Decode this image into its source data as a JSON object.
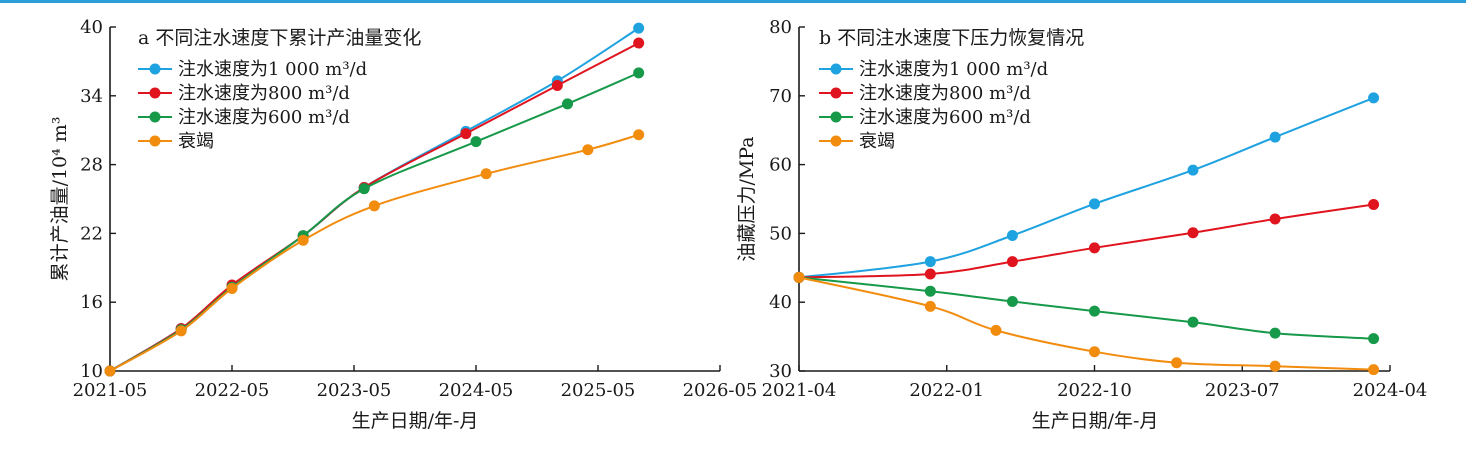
{
  "header_rule_color": "#2a9fd8",
  "chart_data": [
    {
      "type": "line",
      "title": "a 不同注水速度下累计产油量变化",
      "xlabel": "生产日期/年-月",
      "ylabel": "累计产油量/10⁴ m³",
      "x_ticks": [
        "2021-05",
        "2022-05",
        "2023-05",
        "2024-05",
        "2025-05",
        "2026-05"
      ],
      "xlim": [
        "2021-05",
        "2026-05"
      ],
      "ylim": [
        10,
        40
      ],
      "y_ticks": [
        10,
        16,
        22,
        28,
        34,
        40
      ],
      "legend_position": "top-left",
      "grid": false,
      "series": [
        {
          "name": "注水速度为1 000 m³/d",
          "color": "#1fa2e0",
          "points": [
            [
              "2021-05",
              10.0
            ],
            [
              "2021-12",
              13.7
            ],
            [
              "2022-05",
              17.4
            ],
            [
              "2022-12",
              21.8
            ],
            [
              "2023-06",
              26.0
            ],
            [
              "2024-04",
              30.9
            ],
            [
              "2025-01",
              35.3
            ],
            [
              "2025-09",
              39.9
            ]
          ]
        },
        {
          "name": "注水速度为800 m³/d",
          "color": "#e0141e",
          "points": [
            [
              "2021-05",
              10.0
            ],
            [
              "2021-12",
              13.7
            ],
            [
              "2022-05",
              17.5
            ],
            [
              "2022-12",
              21.8
            ],
            [
              "2023-06",
              26.0
            ],
            [
              "2024-04",
              30.7
            ],
            [
              "2025-01",
              34.9
            ],
            [
              "2025-09",
              38.6
            ]
          ]
        },
        {
          "name": "注水速度为600 m³/d",
          "color": "#17994a",
          "points": [
            [
              "2021-05",
              10.0
            ],
            [
              "2021-12",
              13.6
            ],
            [
              "2022-05",
              17.3
            ],
            [
              "2022-12",
              21.8
            ],
            [
              "2023-06",
              25.9
            ],
            [
              "2024-05",
              30.0
            ],
            [
              "2025-02",
              33.3
            ],
            [
              "2025-09",
              36.0
            ]
          ]
        },
        {
          "name": "衰竭",
          "color": "#f28c0f",
          "points": [
            [
              "2021-05",
              10.0
            ],
            [
              "2021-12",
              13.5
            ],
            [
              "2022-05",
              17.2
            ],
            [
              "2022-12",
              21.4
            ],
            [
              "2023-07",
              24.4
            ],
            [
              "2024-06",
              27.2
            ],
            [
              "2025-04",
              29.3
            ],
            [
              "2025-09",
              30.6
            ]
          ]
        }
      ]
    },
    {
      "type": "line",
      "title": "b 不同注水速度下压力恢复情况",
      "xlabel": "生产日期/年-月",
      "ylabel": "油藏压力/MPa",
      "x_ticks": [
        "2021-04",
        "2022-01",
        "2022-10",
        "2023-07",
        "2024-04"
      ],
      "xlim": [
        "2021-04",
        "2024-04"
      ],
      "ylim": [
        30,
        80
      ],
      "y_ticks": [
        30,
        40,
        50,
        60,
        70,
        80
      ],
      "legend_position": "top-left",
      "grid": false,
      "series": [
        {
          "name": "注水速度为1 000 m³/d",
          "color": "#1fa2e0",
          "points": [
            [
              "2021-04",
              43.6
            ],
            [
              "2021-12",
              45.9
            ],
            [
              "2022-05",
              49.7
            ],
            [
              "2022-10",
              54.3
            ],
            [
              "2023-04",
              59.2
            ],
            [
              "2023-09",
              64.0
            ],
            [
              "2024-03",
              69.7
            ]
          ]
        },
        {
          "name": "注水速度为800 m³/d",
          "color": "#e0141e",
          "points": [
            [
              "2021-04",
              43.6
            ],
            [
              "2021-12",
              44.1
            ],
            [
              "2022-05",
              45.9
            ],
            [
              "2022-10",
              47.9
            ],
            [
              "2023-04",
              50.1
            ],
            [
              "2023-09",
              52.1
            ],
            [
              "2024-03",
              54.2
            ]
          ]
        },
        {
          "name": "注水速度为600 m³/d",
          "color": "#17994a",
          "points": [
            [
              "2021-04",
              43.6
            ],
            [
              "2021-12",
              41.6
            ],
            [
              "2022-05",
              40.1
            ],
            [
              "2022-10",
              38.7
            ],
            [
              "2023-04",
              37.1
            ],
            [
              "2023-09",
              35.5
            ],
            [
              "2024-03",
              34.7
            ]
          ]
        },
        {
          "name": "衰竭",
          "color": "#f28c0f",
          "points": [
            [
              "2021-04",
              43.6
            ],
            [
              "2021-12",
              39.4
            ],
            [
              "2022-04",
              35.9
            ],
            [
              "2022-10",
              32.8
            ],
            [
              "2023-03",
              31.2
            ],
            [
              "2023-09",
              30.7
            ],
            [
              "2024-03",
              30.2
            ]
          ]
        }
      ]
    }
  ]
}
